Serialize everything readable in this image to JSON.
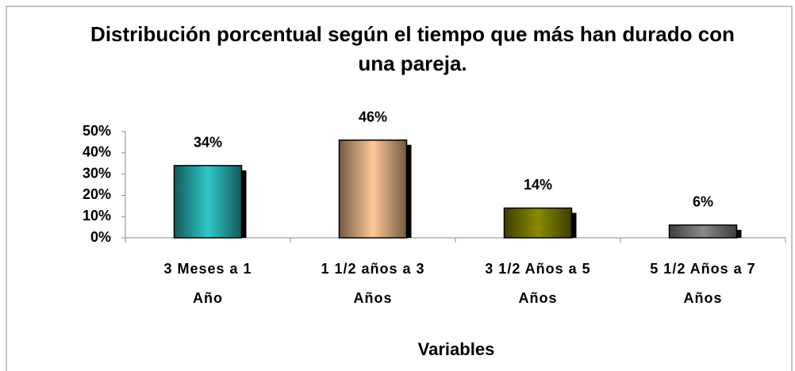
{
  "chart_data": {
    "type": "bar",
    "title": "Distribución porcentual según el tiempo que más han durado con una pareja.",
    "xlabel": "Variables",
    "categories": [
      "3 Meses a 1 Año",
      "1 1/2 años a 3 Años",
      "3 1/2 Años a 5 Años",
      "5 1/2 Años a 7 Años"
    ],
    "values": [
      34,
      46,
      14,
      6
    ],
    "value_labels": [
      "34%",
      "46%",
      "14%",
      "6%"
    ],
    "colors": [
      "#2ec8c8",
      "#ffc896",
      "#8a8a00",
      "#8a8a8a"
    ],
    "ylim": [
      0,
      50
    ],
    "yticks": [
      {
        "value": 0,
        "label": "0%"
      },
      {
        "value": 10,
        "label": "10%"
      },
      {
        "value": 20,
        "label": "20%"
      },
      {
        "value": 30,
        "label": "30%"
      },
      {
        "value": 40,
        "label": "40%"
      },
      {
        "value": 50,
        "label": "50%"
      }
    ],
    "grid": false
  }
}
